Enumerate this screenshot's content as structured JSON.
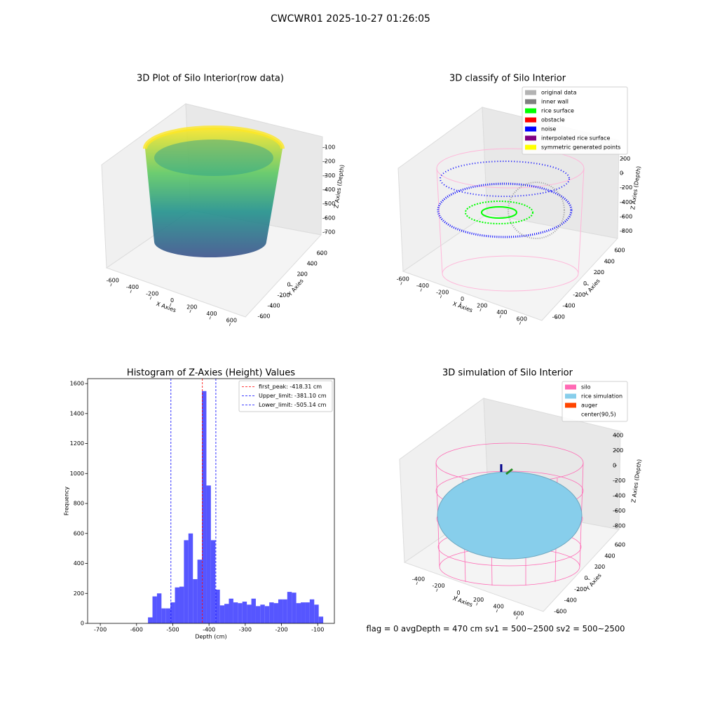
{
  "figure_title": "CWCWR01 2025-10-27 01:26:05",
  "status": "flag = 0     avgDepth = 470 cm  sv1 = 500~2500  sv2 = 500~2500",
  "chart_data": [
    {
      "type": "scatter3d",
      "title": "3D Plot of Silo Interior(row data)",
      "xlabel": "X Axies",
      "ylabel": "Y Axies",
      "zlabel": "Z Axies (Depth)",
      "xlim": [
        -690,
        690
      ],
      "xticks": [
        -600,
        -400,
        -200,
        0,
        200,
        400,
        600
      ],
      "ylim": [
        -690,
        690
      ],
      "yticks": [
        -600,
        -400,
        -200,
        0,
        200,
        400,
        600
      ],
      "zlim": [
        -760,
        -50
      ],
      "zticks": [
        -100,
        -200,
        -300,
        -400,
        -500,
        -600,
        -700
      ]
    },
    {
      "type": "scatter3d",
      "title": "3D classify of Silo Interior",
      "xlabel": "X Axies",
      "ylabel": "Y Axies",
      "zlabel": "Z Axies (Depth)",
      "xlim": [
        -690,
        690
      ],
      "xticks": [
        -600,
        -400,
        -200,
        0,
        200,
        400,
        600
      ],
      "ylim": [
        -690,
        690
      ],
      "yticks": [
        -600,
        -400,
        -200,
        0,
        200,
        400,
        600
      ],
      "zlim": [
        -900,
        300
      ],
      "zticks": [
        200,
        0,
        -200,
        -400,
        -600,
        -800
      ],
      "legend_items": [
        {
          "name": "original data",
          "color": "#b3b3b3"
        },
        {
          "name": "inner wall",
          "color": "#808080"
        },
        {
          "name": "rice surface",
          "color": "#00ff00"
        },
        {
          "name": "obstacle",
          "color": "#ff0000"
        },
        {
          "name": "noise",
          "color": "#0000ff"
        },
        {
          "name": "interpolated rice surface",
          "color": "#800080"
        },
        {
          "name": "symmetric generated points",
          "color": "#ffff00"
        }
      ]
    },
    {
      "type": "histogram",
      "title": "Histogram of Z-Axies (Height) Values",
      "xlabel": "Depth (cm)",
      "ylabel": "Frequency",
      "color": "#4d4dff",
      "bins": [
        -568.4,
        -556.0,
        -543.6,
        -531.2,
        -518.8,
        -506.4,
        -494.0,
        -481.6,
        -469.2,
        -456.8,
        -444.4,
        -432.0,
        -419.6,
        -407.2,
        -394.8,
        -382.4,
        -370.0,
        -357.6,
        -345.2,
        -332.8,
        -320.4,
        -308.0,
        -295.6,
        -283.2,
        -270.8,
        -258.4,
        -246.0,
        -233.6,
        -221.2,
        -208.8,
        -196.4,
        -184.0,
        -171.6,
        -159.2,
        -146.8,
        -134.4,
        -122.0,
        -109.6,
        -97.2,
        -84.8
      ],
      "counts": [
        40,
        180,
        200,
        100,
        100,
        140,
        240,
        245,
        555,
        600,
        295,
        425,
        1550,
        920,
        555,
        225,
        120,
        130,
        165,
        140,
        135,
        145,
        125,
        165,
        115,
        125,
        115,
        140,
        135,
        160,
        160,
        210,
        205,
        135,
        140,
        140,
        160,
        125,
        45
      ],
      "xlim": [
        -735,
        -54
      ],
      "xticks": [
        -700,
        -600,
        -500,
        -400,
        -300,
        -200,
        -100
      ],
      "ylim": [
        0,
        1633
      ],
      "yticks": [
        0,
        200,
        400,
        600,
        800,
        1000,
        1200,
        1400,
        1600
      ],
      "legend": "upper right",
      "lines": [
        {
          "name": "first_peak: -418.31 cm",
          "value": -418.31,
          "color": "#ff0000"
        },
        {
          "name": "Upper_limit: -381.10 cm",
          "value": -381.1,
          "color": "#0000ff"
        },
        {
          "name": "Lower_limit: -505.14 cm",
          "value": -505.14,
          "color": "#0000ff"
        }
      ]
    },
    {
      "type": "surface3d",
      "title": "3D simulation of Silo Interior",
      "xlabel": "X Axies",
      "ylabel": "Y Axies",
      "zlabel": "Z Axies (Depth)",
      "xlim": [
        -540,
        700
      ],
      "xticks": [
        -400,
        -200,
        0,
        200,
        400,
        600
      ],
      "ylim": [
        -700,
        700
      ],
      "yticks": [
        -600,
        -400,
        -200,
        0,
        200,
        400,
        600
      ],
      "zlim": [
        -900,
        500
      ],
      "zticks": [
        400,
        200,
        0,
        -200,
        -400,
        -600,
        -800
      ],
      "legend_items": [
        {
          "name": "silo",
          "color": "#ff69b4"
        },
        {
          "name": "rice simulation",
          "color": "#87ceeb"
        },
        {
          "name": "auger",
          "color": "#ff4500"
        },
        {
          "name": "center(90,5)",
          "color": "#ffffff"
        }
      ]
    }
  ]
}
